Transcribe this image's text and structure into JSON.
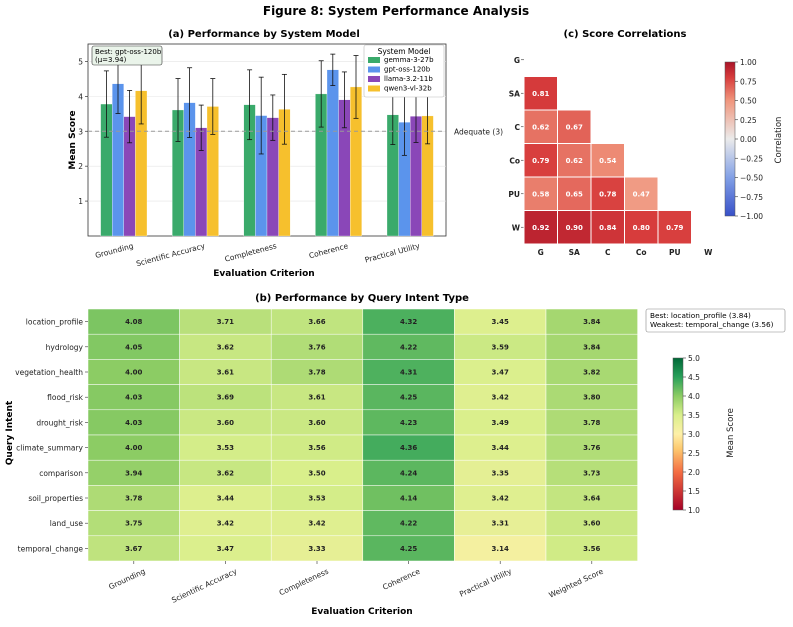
{
  "figure_title": "Figure 8: System Performance Analysis",
  "chart_data": [
    {
      "id": "a",
      "type": "bar",
      "title": "(a) Performance by System Model",
      "xlabel": "Evaluation Criterion",
      "ylabel": "Mean Score",
      "ylim": [
        0,
        5.5
      ],
      "yticks": [
        1,
        2,
        3,
        4,
        5
      ],
      "categories": [
        "Grounding",
        "Scientific Accuracy",
        "Completeness",
        "Coherence",
        "Practical Utility"
      ],
      "series": [
        {
          "name": "gemma-3-27b",
          "color": "#3aaa6b",
          "values": [
            3.78,
            3.61,
            3.76,
            4.07,
            3.47
          ],
          "errors": [
            0.95,
            0.9,
            1.0,
            0.95,
            0.85
          ]
        },
        {
          "name": "gpt-oss-120b",
          "color": "#5b94ec",
          "values": [
            4.36,
            3.82,
            3.45,
            4.76,
            3.26
          ],
          "errors": [
            0.85,
            1.0,
            1.1,
            0.45,
            0.95
          ]
        },
        {
          "name": "llama-3.2-11b",
          "color": "#8a47b8",
          "values": [
            3.42,
            3.1,
            3.39,
            3.9,
            3.43
          ],
          "errors": [
            0.75,
            0.65,
            0.65,
            0.8,
            0.75
          ]
        },
        {
          "name": "qwen3-vl-32b",
          "color": "#f6c02d",
          "values": [
            4.16,
            3.71,
            3.63,
            4.27,
            3.44
          ],
          "errors": [
            0.95,
            0.8,
            1.0,
            0.9,
            0.8
          ]
        }
      ],
      "reference_line": {
        "value": 3,
        "label": "Adequate (3)"
      },
      "annotation_lines": [
        "Best: gpt-oss-120b",
        "(μ=3.94)"
      ],
      "legend_title": "System Model",
      "legend_position": "top-right"
    },
    {
      "id": "b",
      "type": "heatmap",
      "title": "(b) Performance by Query Intent Type",
      "xlabel": "Evaluation Criterion",
      "ylabel": "Query Intent",
      "columns": [
        "Grounding",
        "Scientific Accuracy",
        "Completeness",
        "Coherence",
        "Practical Utility",
        "Weighted Score"
      ],
      "rows": [
        "location_profile",
        "hydrology",
        "vegetation_health",
        "flood_risk",
        "drought_risk",
        "climate_summary",
        "comparison",
        "soil_properties",
        "land_use",
        "temporal_change"
      ],
      "values": [
        [
          4.08,
          3.71,
          3.66,
          4.32,
          3.45,
          3.84
        ],
        [
          4.05,
          3.62,
          3.76,
          4.22,
          3.59,
          3.84
        ],
        [
          4.0,
          3.61,
          3.78,
          4.31,
          3.47,
          3.82
        ],
        [
          4.03,
          3.69,
          3.61,
          4.25,
          3.42,
          3.8
        ],
        [
          4.03,
          3.6,
          3.6,
          4.23,
          3.49,
          3.78
        ],
        [
          4.0,
          3.53,
          3.56,
          4.36,
          3.44,
          3.76
        ],
        [
          3.94,
          3.62,
          3.5,
          4.24,
          3.35,
          3.73
        ],
        [
          3.78,
          3.44,
          3.53,
          4.14,
          3.42,
          3.64
        ],
        [
          3.75,
          3.42,
          3.42,
          4.22,
          3.31,
          3.6
        ],
        [
          3.67,
          3.47,
          3.33,
          4.25,
          3.14,
          3.56
        ]
      ],
      "annotation_lines": [
        "Best: location_profile (3.84)",
        "Weakest: temporal_change (3.56)"
      ],
      "colorbar": {
        "label": "Mean Score",
        "range": [
          1.0,
          5.0
        ],
        "ticks": [
          "5.0",
          "4.5",
          "4.0",
          "3.5",
          "3.0",
          "2.5",
          "2.0",
          "1.5",
          "1.0"
        ]
      }
    },
    {
      "id": "c",
      "type": "heatmap",
      "title": "(c) Score Correlations",
      "labels": [
        "G",
        "SA",
        "C",
        "Co",
        "PU",
        "W"
      ],
      "lower_triangle": [
        [],
        [
          0.81
        ],
        [
          0.62,
          0.67
        ],
        [
          0.79,
          0.62,
          0.54
        ],
        [
          0.58,
          0.65,
          0.78,
          0.47
        ],
        [
          0.92,
          0.9,
          0.84,
          0.8,
          0.79
        ]
      ],
      "colorbar": {
        "label": "Correlation",
        "range": [
          -1.0,
          1.0
        ],
        "ticks": [
          "1.00",
          "0.75",
          "0.50",
          "0.25",
          "0.00",
          "−0.25",
          "−0.50",
          "−0.75",
          "−1.00"
        ]
      }
    }
  ]
}
